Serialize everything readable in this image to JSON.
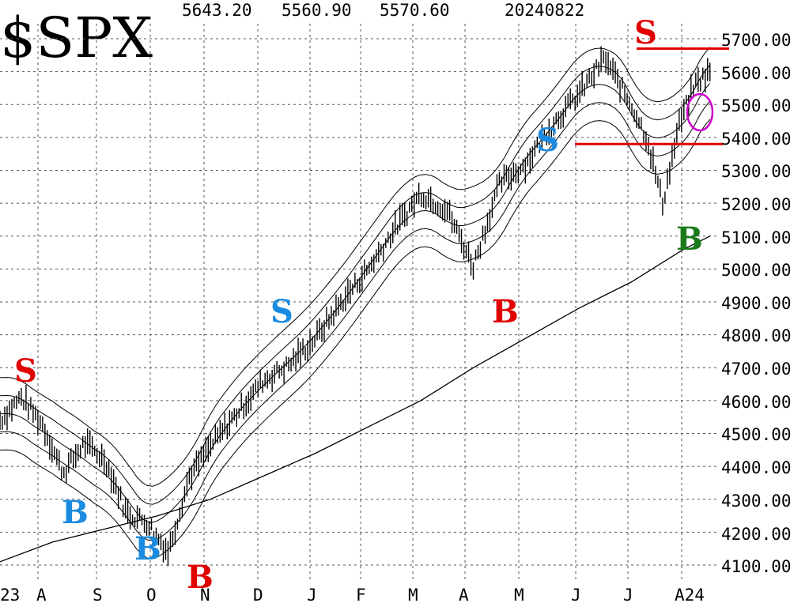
{
  "chart_data": {
    "type": "line",
    "title": "$SPX",
    "header_values": [
      "5643.20",
      "5560.90",
      "5570.60",
      "20240822"
    ],
    "y_ticks": [
      4100,
      4200,
      4300,
      4400,
      4500,
      4600,
      4700,
      4800,
      4900,
      5000,
      5100,
      5200,
      5300,
      5400,
      5500,
      5600,
      5700
    ],
    "y_tick_labels": [
      "4100.00",
      "4200.00",
      "4300.00",
      "4400.00",
      "4500.00",
      "4600.00",
      "4700.00",
      "4800.00",
      "4900.00",
      "5000.00",
      "5100.00",
      "5200.00",
      "5300.00",
      "5400.00",
      "5500.00",
      "5600.00",
      "5700.00"
    ],
    "ylim": [
      4080,
      5780
    ],
    "x_months": [
      "23",
      "A",
      "S",
      "O",
      "N",
      "D",
      "J",
      "F",
      "M",
      "A",
      "M",
      "J",
      "J",
      "A24"
    ],
    "grid": true,
    "colors": {
      "red": "#e00000",
      "blue": "#1a8be0",
      "green": "#1a7a1a",
      "magenta": "#cc00cc",
      "line": "#000000"
    },
    "horizontal_lines": [
      5670,
      5380
    ],
    "series": [
      {
        "x": [
          0,
          0.4,
          0.8,
          1.2,
          1.6,
          2,
          2.4,
          2.8,
          3.2,
          3.6,
          4,
          4.5,
          5,
          5.5,
          6,
          6.5,
          7,
          7.5,
          8,
          8.5,
          9,
          9.5,
          10,
          10.5,
          11,
          11.5,
          12,
          12.3,
          12.6,
          12.9,
          13.2,
          13.5
        ],
        "values": [
          4540,
          4610,
          4530,
          4380,
          4470,
          4420,
          4260,
          4230,
          4140,
          4370,
          4460,
          4560,
          4660,
          4710,
          4790,
          4900,
          5000,
          5120,
          5230,
          5180,
          5010,
          5260,
          5320,
          5440,
          5530,
          5640,
          5500,
          5400,
          5200,
          5430,
          5560,
          5600
        ]
      },
      {
        "x": [
          0,
          1,
          2,
          3,
          4,
          5,
          6,
          7,
          8,
          9,
          10,
          11,
          12,
          13,
          13.5
        ],
        "values": [
          4110,
          4170,
          4210,
          4250,
          4300,
          4370,
          4440,
          4520,
          4600,
          4700,
          4790,
          4880,
          4960,
          5060,
          5100
        ]
      }
    ],
    "annotations": [
      {
        "text": "S",
        "color": "red"
      },
      {
        "text": "B",
        "color": "blue"
      },
      {
        "text": "B",
        "color": "blue"
      },
      {
        "text": "B",
        "color": "red"
      },
      {
        "text": "S",
        "color": "blue"
      },
      {
        "text": "B",
        "color": "red"
      },
      {
        "text": "S",
        "color": "blue"
      },
      {
        "text": "S",
        "color": "red"
      },
      {
        "text": "B",
        "color": "green"
      }
    ]
  }
}
